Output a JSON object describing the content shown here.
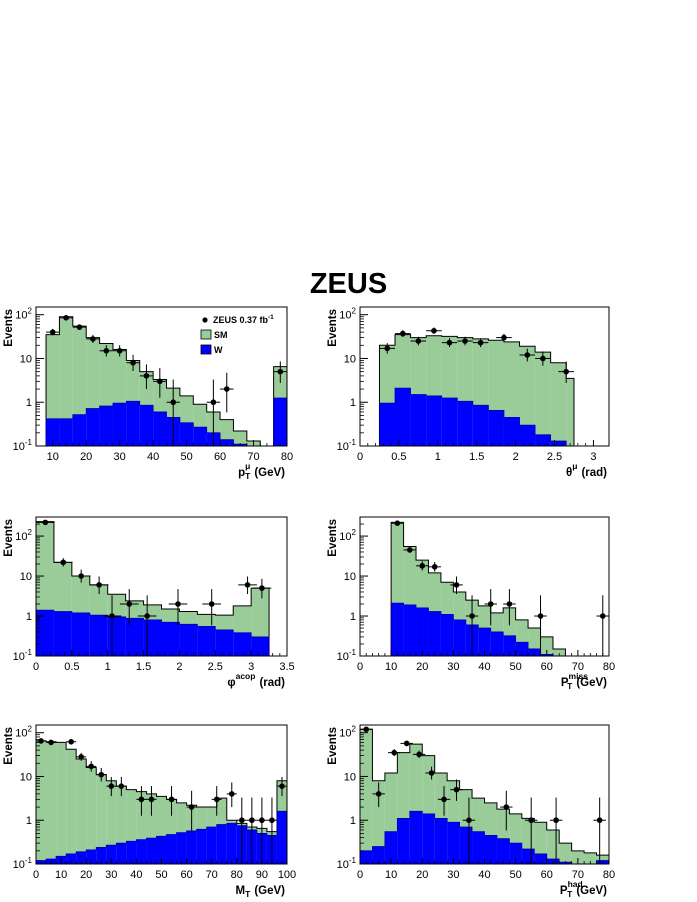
{
  "title": "ZEUS",
  "legend": {
    "data_label": "ZEUS 0.37 fb",
    "data_label_sup": "-1",
    "sm_label": "SM",
    "w_label": "W"
  },
  "colors": {
    "sm": "#99cc99",
    "w": "#0000ff",
    "w_dark": "#0000aa",
    "line": "#000000"
  },
  "chart_data": [
    {
      "type": "bar",
      "id": "ptmu",
      "xlabel": "p",
      "xlabel_sub": "T",
      "xlabel_sup": "μ",
      "xlabel_unit": "(GeV)",
      "ylabel": "Events",
      "xlim": [
        5,
        80
      ],
      "ylim": [
        0.1,
        150
      ],
      "yscale": "log",
      "xticks": [
        10,
        20,
        30,
        40,
        50,
        60,
        70,
        80
      ],
      "xtick_labels": [
        "10",
        "20",
        "30",
        "40",
        "50",
        "60",
        "70",
        "80"
      ],
      "legend": true,
      "bins": [
        [
          8,
          12
        ],
        [
          12,
          16
        ],
        [
          16,
          20
        ],
        [
          20,
          24
        ],
        [
          24,
          28
        ],
        [
          28,
          32
        ],
        [
          32,
          36
        ],
        [
          36,
          40
        ],
        [
          40,
          44
        ],
        [
          44,
          48
        ],
        [
          48,
          52
        ],
        [
          52,
          56
        ],
        [
          56,
          60
        ],
        [
          60,
          64
        ],
        [
          64,
          68
        ],
        [
          68,
          72
        ],
        [
          76,
          80
        ]
      ],
      "sm": [
        35,
        90,
        55,
        30,
        22,
        16,
        9,
        5,
        3.3,
        2.1,
        1.4,
        0.9,
        0.6,
        0.4,
        0.22,
        0.13,
        6.5
      ],
      "w": [
        0.42,
        0.42,
        0.52,
        0.72,
        0.82,
        0.95,
        1.05,
        0.85,
        0.6,
        0.45,
        0.34,
        0.27,
        0.2,
        0.14,
        0.11,
        0.1,
        1.25
      ],
      "points": [
        {
          "x": 10,
          "y": 40,
          "xerr": 2
        },
        {
          "x": 14,
          "y": 85,
          "xerr": 2
        },
        {
          "x": 18,
          "y": 52,
          "xerr": 2
        },
        {
          "x": 22,
          "y": 28,
          "xerr": 2
        },
        {
          "x": 26,
          "y": 15,
          "xerr": 2
        },
        {
          "x": 30,
          "y": 15,
          "xerr": 2
        },
        {
          "x": 34,
          "y": 8,
          "xerr": 2
        },
        {
          "x": 38,
          "y": 4,
          "xerr": 2
        },
        {
          "x": 42,
          "y": 3,
          "xerr": 2
        },
        {
          "x": 46,
          "y": 1,
          "xerr": 2
        },
        {
          "x": 58,
          "y": 1,
          "xerr": 2
        },
        {
          "x": 62,
          "y": 2,
          "xerr": 2
        },
        {
          "x": 78,
          "y": 5,
          "xerr": 2
        }
      ]
    },
    {
      "type": "bar",
      "id": "thetamu",
      "xlabel": "θ",
      "xlabel_sub": "",
      "xlabel_sup": "μ",
      "xlabel_unit": "(rad)",
      "ylabel": "Events",
      "xlim": [
        0,
        3.2
      ],
      "ylim": [
        0.1,
        150
      ],
      "yscale": "log",
      "xticks": [
        0,
        0.5,
        1,
        1.5,
        2,
        2.5,
        3
      ],
      "xtick_labels": [
        "0",
        "0.5",
        "1",
        "1.5",
        "2",
        "2.5",
        "3"
      ],
      "legend": false,
      "bins": [
        [
          0.25,
          0.45
        ],
        [
          0.45,
          0.65
        ],
        [
          0.65,
          0.85
        ],
        [
          0.85,
          1.05
        ],
        [
          1.05,
          1.25
        ],
        [
          1.25,
          1.45
        ],
        [
          1.45,
          1.65
        ],
        [
          1.65,
          1.85
        ],
        [
          1.85,
          2.05
        ],
        [
          2.05,
          2.25
        ],
        [
          2.25,
          2.45
        ],
        [
          2.45,
          2.65
        ],
        [
          2.65,
          2.75
        ]
      ],
      "sm": [
        20,
        35,
        30,
        33,
        32,
        30,
        28,
        26,
        24,
        19,
        14,
        8,
        3.5
      ],
      "w": [
        0.95,
        2.1,
        1.5,
        1.4,
        1.25,
        1.05,
        0.85,
        0.65,
        0.45,
        0.3,
        0.18,
        0.13,
        0.1
      ],
      "points": [
        {
          "x": 0.35,
          "y": 17,
          "xerr": 0.1
        },
        {
          "x": 0.55,
          "y": 37,
          "xerr": 0.1
        },
        {
          "x": 0.75,
          "y": 25,
          "xerr": 0.1
        },
        {
          "x": 0.95,
          "y": 43,
          "xerr": 0.1
        },
        {
          "x": 1.15,
          "y": 23,
          "xerr": 0.1
        },
        {
          "x": 1.35,
          "y": 25,
          "xerr": 0.1
        },
        {
          "x": 1.55,
          "y": 23,
          "xerr": 0.1
        },
        {
          "x": 1.85,
          "y": 30,
          "xerr": 0.1
        },
        {
          "x": 2.15,
          "y": 12,
          "xerr": 0.1
        },
        {
          "x": 2.35,
          "y": 10,
          "xerr": 0.1
        },
        {
          "x": 2.65,
          "y": 5,
          "xerr": 0.1
        }
      ]
    },
    {
      "type": "bar",
      "id": "phiacop",
      "xlabel": "φ",
      "xlabel_sub": "",
      "xlabel_sup": "acop",
      "xlabel_unit": "(rad)",
      "ylabel": "Events",
      "xlim": [
        0,
        3.5
      ],
      "ylim": [
        0.1,
        300
      ],
      "yscale": "log",
      "xticks": [
        0,
        0.5,
        1,
        1.5,
        2,
        2.5,
        3,
        3.5
      ],
      "xtick_labels": [
        "0",
        "0.5",
        "1",
        "1.5",
        "2",
        "2.5",
        "3",
        "3.5"
      ],
      "legend": false,
      "bins": [
        [
          0,
          0.25
        ],
        [
          0.25,
          0.5
        ],
        [
          0.5,
          0.75
        ],
        [
          0.75,
          1
        ],
        [
          1,
          1.25
        ],
        [
          1.25,
          1.5
        ],
        [
          1.5,
          1.75
        ],
        [
          1.75,
          2
        ],
        [
          2,
          2.25
        ],
        [
          2.25,
          2.5
        ],
        [
          2.5,
          2.75
        ],
        [
          2.75,
          3
        ],
        [
          3,
          3.25
        ]
      ],
      "sm": [
        230,
        22,
        10,
        6,
        3.5,
        2.4,
        1.9,
        1.5,
        1.3,
        1.1,
        1.05,
        1.8,
        5
      ],
      "w": [
        1.4,
        1.3,
        1.2,
        1.05,
        0.95,
        0.88,
        0.8,
        0.7,
        0.62,
        0.55,
        0.45,
        0.38,
        0.3
      ],
      "points": [
        {
          "x": 0.13,
          "y": 220,
          "xerr": 0.13
        },
        {
          "x": 0.38,
          "y": 22,
          "xerr": 0.13
        },
        {
          "x": 0.63,
          "y": 10,
          "xerr": 0.13
        },
        {
          "x": 0.88,
          "y": 6,
          "xerr": 0.13
        },
        {
          "x": 1.06,
          "y": 1,
          "xerr": 0.13
        },
        {
          "x": 1.3,
          "y": 2,
          "xerr": 0.13
        },
        {
          "x": 1.55,
          "y": 1,
          "xerr": 0.13
        },
        {
          "x": 1.98,
          "y": 2,
          "xerr": 0.13
        },
        {
          "x": 2.45,
          "y": 2,
          "xerr": 0.13
        },
        {
          "x": 2.95,
          "y": 6,
          "xerr": 0.13
        },
        {
          "x": 3.15,
          "y": 5,
          "xerr": 0.13
        }
      ]
    },
    {
      "type": "bar",
      "id": "ptmiss",
      "xlabel": "P",
      "xlabel_sub": "T",
      "xlabel_sup": "miss",
      "xlabel_unit": "(GeV)",
      "ylabel": "Events",
      "xlim": [
        0,
        80
      ],
      "ylim": [
        0.1,
        300
      ],
      "yscale": "log",
      "xticks": [
        0,
        10,
        20,
        30,
        40,
        50,
        60,
        70,
        80
      ],
      "xtick_labels": [
        "0",
        "10",
        "20",
        "30",
        "40",
        "50",
        "60",
        "70",
        "80"
      ],
      "legend": false,
      "bins": [
        [
          10,
          14
        ],
        [
          14,
          18
        ],
        [
          18,
          22
        ],
        [
          22,
          26
        ],
        [
          26,
          30
        ],
        [
          30,
          34
        ],
        [
          34,
          38
        ],
        [
          38,
          42
        ],
        [
          42,
          46
        ],
        [
          46,
          50
        ],
        [
          50,
          54
        ],
        [
          54,
          58
        ],
        [
          58,
          62
        ],
        [
          62,
          66
        ],
        [
          66,
          70
        ]
      ],
      "sm": [
        220,
        55,
        25,
        12,
        7,
        4,
        2.5,
        1.8,
        1.2,
        1.6,
        0.8,
        0.5,
        0.3,
        0.15,
        0.1
      ],
      "w": [
        2.1,
        1.9,
        1.6,
        1.3,
        1.1,
        0.8,
        0.6,
        0.5,
        0.4,
        0.32,
        0.22,
        0.15,
        0.11,
        0.1,
        0.1
      ],
      "points": [
        {
          "x": 12,
          "y": 210,
          "xerr": 2
        },
        {
          "x": 16,
          "y": 45,
          "xerr": 2
        },
        {
          "x": 20,
          "y": 18,
          "xerr": 2
        },
        {
          "x": 24,
          "y": 17,
          "xerr": 2
        },
        {
          "x": 31,
          "y": 6,
          "xerr": 2
        },
        {
          "x": 36,
          "y": 1,
          "xerr": 2
        },
        {
          "x": 42,
          "y": 2,
          "xerr": 2
        },
        {
          "x": 48,
          "y": 2,
          "xerr": 2
        },
        {
          "x": 58,
          "y": 1,
          "xerr": 2
        },
        {
          "x": 78,
          "y": 1,
          "xerr": 2
        }
      ]
    },
    {
      "type": "bar",
      "id": "mt",
      "xlabel": "M",
      "xlabel_sub": "T",
      "xlabel_sup": "",
      "xlabel_unit": "(GeV)",
      "ylabel": "Events",
      "xlim": [
        0,
        100
      ],
      "ylim": [
        0.1,
        150
      ],
      "yscale": "log",
      "xticks": [
        0,
        10,
        20,
        30,
        40,
        50,
        60,
        70,
        80,
        90,
        100
      ],
      "xtick_labels": [
        "0",
        "10",
        "20",
        "30",
        "40",
        "50",
        "60",
        "70",
        "80",
        "90",
        "100"
      ],
      "legend": false,
      "bins": [
        [
          0,
          4
        ],
        [
          4,
          8
        ],
        [
          8,
          12
        ],
        [
          12,
          16
        ],
        [
          16,
          20
        ],
        [
          20,
          24
        ],
        [
          24,
          28
        ],
        [
          28,
          32
        ],
        [
          32,
          36
        ],
        [
          36,
          40
        ],
        [
          40,
          44
        ],
        [
          44,
          48
        ],
        [
          48,
          52
        ],
        [
          52,
          56
        ],
        [
          56,
          60
        ],
        [
          60,
          64
        ],
        [
          64,
          68
        ],
        [
          68,
          72
        ],
        [
          72,
          76
        ],
        [
          76,
          80
        ],
        [
          80,
          84
        ],
        [
          84,
          88
        ],
        [
          88,
          92
        ],
        [
          92,
          96
        ],
        [
          96,
          100
        ]
      ],
      "sm": [
        65,
        62,
        60,
        42,
        25,
        16,
        11,
        8,
        6,
        5,
        4.5,
        4,
        3.5,
        3,
        2.5,
        2.2,
        2,
        2,
        3.2,
        1,
        0.85,
        0.7,
        0.65,
        0.55,
        8
      ],
      "w": [
        0.12,
        0.13,
        0.15,
        0.17,
        0.19,
        0.21,
        0.24,
        0.27,
        0.3,
        0.33,
        0.36,
        0.39,
        0.43,
        0.47,
        0.52,
        0.57,
        0.62,
        0.7,
        0.8,
        0.85,
        0.75,
        0.6,
        0.5,
        0.45,
        1.6
      ],
      "points": [
        {
          "x": 2,
          "y": 65,
          "xerr": 2
        },
        {
          "x": 6,
          "y": 60,
          "xerr": 2
        },
        {
          "x": 14,
          "y": 62,
          "xerr": 2
        },
        {
          "x": 18,
          "y": 28,
          "xerr": 2
        },
        {
          "x": 22,
          "y": 17,
          "xerr": 2
        },
        {
          "x": 26,
          "y": 11,
          "xerr": 2
        },
        {
          "x": 30,
          "y": 6,
          "xerr": 2
        },
        {
          "x": 34,
          "y": 6,
          "xerr": 2
        },
        {
          "x": 42,
          "y": 3,
          "xerr": 2
        },
        {
          "x": 46,
          "y": 3,
          "xerr": 2
        },
        {
          "x": 54,
          "y": 3,
          "xerr": 2
        },
        {
          "x": 62,
          "y": 2,
          "xerr": 2
        },
        {
          "x": 72,
          "y": 3,
          "xerr": 2
        },
        {
          "x": 78,
          "y": 4,
          "xerr": 2
        },
        {
          "x": 82,
          "y": 1,
          "xerr": 2
        },
        {
          "x": 86,
          "y": 1,
          "xerr": 2
        },
        {
          "x": 90,
          "y": 1,
          "xerr": 2
        },
        {
          "x": 94,
          "y": 1,
          "xerr": 2
        },
        {
          "x": 98,
          "y": 6,
          "xerr": 2
        }
      ]
    },
    {
      "type": "bar",
      "id": "pthad",
      "xlabel": "P",
      "xlabel_sub": "T",
      "xlabel_sup": "had",
      "xlabel_unit": "(GeV)",
      "ylabel": "Events",
      "xlim": [
        0,
        80
      ],
      "ylim": [
        0.1,
        150
      ],
      "yscale": "log",
      "xticks": [
        0,
        10,
        20,
        30,
        40,
        50,
        60,
        70,
        80
      ],
      "xtick_labels": [
        "0",
        "10",
        "20",
        "30",
        "40",
        "50",
        "60",
        "70",
        "80"
      ],
      "legend": false,
      "bins": [
        [
          0,
          4
        ],
        [
          4,
          8
        ],
        [
          8,
          12
        ],
        [
          12,
          16
        ],
        [
          16,
          20
        ],
        [
          20,
          24
        ],
        [
          24,
          28
        ],
        [
          28,
          32
        ],
        [
          32,
          36
        ],
        [
          36,
          40
        ],
        [
          40,
          44
        ],
        [
          44,
          48
        ],
        [
          48,
          52
        ],
        [
          52,
          56
        ],
        [
          56,
          60
        ],
        [
          60,
          64
        ],
        [
          64,
          68
        ],
        [
          68,
          72
        ],
        [
          72,
          76
        ],
        [
          76,
          80
        ]
      ],
      "sm": [
        120,
        8,
        12,
        35,
        55,
        30,
        12,
        8,
        5,
        3.2,
        2.5,
        1.8,
        1.4,
        1.1,
        0.9,
        0.6,
        0.3,
        0.2,
        0.18,
        0.16
      ],
      "w": [
        0.2,
        0.25,
        0.55,
        1.1,
        1.6,
        1.4,
        1.1,
        0.9,
        0.7,
        0.55,
        0.45,
        0.38,
        0.3,
        0.22,
        0.17,
        0.13,
        0.11,
        0.1,
        0.1,
        0.12
      ],
      "points": [
        {
          "x": 2,
          "y": 120,
          "xerr": 2
        },
        {
          "x": 6,
          "y": 4,
          "xerr": 2
        },
        {
          "x": 11,
          "y": 35,
          "xerr": 2
        },
        {
          "x": 15,
          "y": 57,
          "xerr": 2
        },
        {
          "x": 19,
          "y": 32,
          "xerr": 2
        },
        {
          "x": 23,
          "y": 12,
          "xerr": 2
        },
        {
          "x": 27,
          "y": 3,
          "xerr": 2
        },
        {
          "x": 31,
          "y": 5,
          "xerr": 2
        },
        {
          "x": 35,
          "y": 1,
          "xerr": 2
        },
        {
          "x": 47,
          "y": 2,
          "xerr": 2
        },
        {
          "x": 55,
          "y": 1,
          "xerr": 2
        },
        {
          "x": 63,
          "y": 1,
          "xerr": 2
        },
        {
          "x": 77,
          "y": 1,
          "xerr": 2
        }
      ]
    }
  ]
}
